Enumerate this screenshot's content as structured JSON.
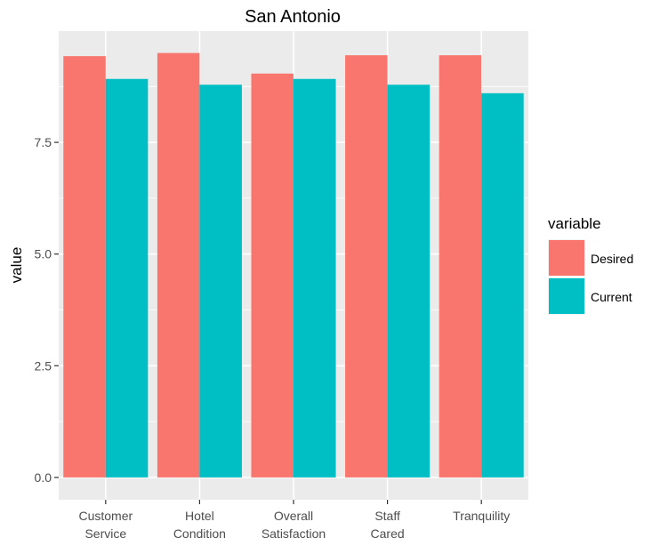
{
  "chart_data": {
    "type": "bar",
    "title": "San Antonio",
    "xlabel": "",
    "ylabel": "value",
    "categories": [
      [
        "Customer",
        "Service"
      ],
      [
        "Hotel",
        "Condition"
      ],
      [
        "Overall",
        "Satisfaction"
      ],
      [
        "Staff",
        "Cared"
      ],
      [
        "Tranquility"
      ]
    ],
    "series": [
      {
        "name": "Desired",
        "color": "#F8766D",
        "values": [
          9.43,
          9.5,
          9.04,
          9.45,
          9.45
        ]
      },
      {
        "name": "Current",
        "color": "#00BFC4",
        "values": [
          8.92,
          8.79,
          8.92,
          8.79,
          8.6
        ]
      }
    ],
    "ylim": [
      -0.5,
      9.99
    ],
    "yticks": [
      0.0,
      2.5,
      5.0,
      7.5
    ],
    "ytick_labels": [
      "0.0",
      "2.5",
      "5.0",
      "7.5"
    ],
    "grid": true,
    "legend": {
      "title": "variable",
      "position": "right"
    },
    "panel_color": "#EBEBEB"
  }
}
